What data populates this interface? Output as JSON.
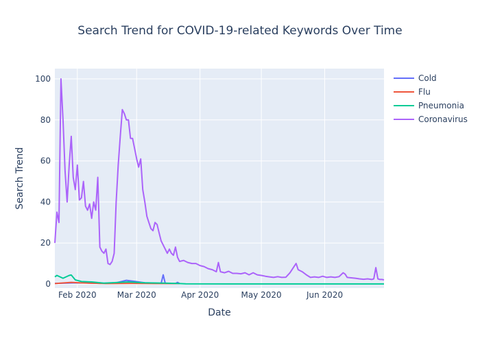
{
  "chart_data": {
    "type": "line",
    "title": "Search Trend for COVID-19-related Keywords Over Time",
    "xlabel": "Date",
    "ylabel": "Search Trend",
    "xlim": [
      "2020-01-21",
      "2020-06-30"
    ],
    "ylim": [
      -2,
      105
    ],
    "x_ticks": [
      {
        "date": "2020-02-01",
        "label": "Feb 2020"
      },
      {
        "date": "2020-03-01",
        "label": "Mar 2020"
      },
      {
        "date": "2020-04-01",
        "label": "Apr 2020"
      },
      {
        "date": "2020-05-01",
        "label": "May 2020"
      },
      {
        "date": "2020-06-01",
        "label": "Jun 2020"
      }
    ],
    "y_ticks": [
      0,
      20,
      40,
      60,
      80,
      100
    ],
    "grid": true,
    "legend_position": "top-right",
    "background_color": "#e5ecf6",
    "series": [
      {
        "name": "Cold",
        "color": "#636efa",
        "points": [
          [
            "2020-01-21",
            0.3
          ],
          [
            "2020-01-30",
            0.5
          ],
          [
            "2020-02-05",
            0.5
          ],
          [
            "2020-02-12",
            0.3
          ],
          [
            "2020-02-20",
            0.6
          ],
          [
            "2020-02-25",
            1.8
          ],
          [
            "2020-02-29",
            1.3
          ],
          [
            "2020-03-05",
            0.6
          ],
          [
            "2020-03-10",
            0.4
          ],
          [
            "2020-03-13",
            0.3
          ],
          [
            "2020-03-14",
            4.5
          ],
          [
            "2020-03-15",
            0.3
          ],
          [
            "2020-03-20",
            0.2
          ],
          [
            "2020-03-21",
            0.8
          ],
          [
            "2020-03-22",
            0.2
          ]
        ]
      },
      {
        "name": "Flu",
        "color": "#ef553b",
        "points": [
          [
            "2020-01-21",
            0.2
          ],
          [
            "2020-01-29",
            0.8
          ],
          [
            "2020-02-04",
            0.5
          ],
          [
            "2020-02-15",
            0.2
          ],
          [
            "2020-02-28",
            0.3
          ],
          [
            "2020-03-10",
            0.2
          ],
          [
            "2020-03-22",
            0.2
          ]
        ]
      },
      {
        "name": "Pneumonia",
        "color": "#00cc96",
        "points": [
          [
            "2020-01-21",
            3.5
          ],
          [
            "2020-01-22",
            4.2
          ],
          [
            "2020-01-25",
            2.8
          ],
          [
            "2020-01-28",
            4.2
          ],
          [
            "2020-01-29",
            4.4
          ],
          [
            "2020-01-31",
            2.0
          ],
          [
            "2020-02-03",
            1.2
          ],
          [
            "2020-02-08",
            1.0
          ],
          [
            "2020-02-14",
            0.4
          ],
          [
            "2020-02-20",
            0.7
          ],
          [
            "2020-02-26",
            1.0
          ],
          [
            "2020-03-05",
            0.6
          ],
          [
            "2020-03-15",
            0.4
          ],
          [
            "2020-03-20",
            0.3
          ],
          [
            "2020-03-25",
            0.1
          ],
          [
            "2020-04-15",
            0.05
          ],
          [
            "2020-06-30",
            0.05
          ]
        ]
      },
      {
        "name": "Coronavirus",
        "color": "#ab63fa",
        "points": [
          [
            "2020-01-21",
            20
          ],
          [
            "2020-01-22",
            35
          ],
          [
            "2020-01-23",
            30
          ],
          [
            "2020-01-24",
            100
          ],
          [
            "2020-01-25",
            80
          ],
          [
            "2020-01-26",
            55
          ],
          [
            "2020-01-27",
            40
          ],
          [
            "2020-01-28",
            58
          ],
          [
            "2020-01-29",
            72
          ],
          [
            "2020-01-30",
            52
          ],
          [
            "2020-01-31",
            46
          ],
          [
            "2020-02-01",
            58
          ],
          [
            "2020-02-02",
            41
          ],
          [
            "2020-02-03",
            42
          ],
          [
            "2020-02-04",
            50
          ],
          [
            "2020-02-05",
            38
          ],
          [
            "2020-02-06",
            36
          ],
          [
            "2020-02-07",
            39
          ],
          [
            "2020-02-08",
            32
          ],
          [
            "2020-02-09",
            40
          ],
          [
            "2020-02-10",
            36
          ],
          [
            "2020-02-11",
            52
          ],
          [
            "2020-02-12",
            18
          ],
          [
            "2020-02-13",
            16
          ],
          [
            "2020-02-14",
            15
          ],
          [
            "2020-02-15",
            17
          ],
          [
            "2020-02-16",
            10
          ],
          [
            "2020-02-17",
            9.5
          ],
          [
            "2020-02-18",
            11
          ],
          [
            "2020-02-19",
            15
          ],
          [
            "2020-02-20",
            40
          ],
          [
            "2020-02-21",
            58
          ],
          [
            "2020-02-22",
            72
          ],
          [
            "2020-02-23",
            85
          ],
          [
            "2020-02-24",
            83
          ],
          [
            "2020-02-25",
            80
          ],
          [
            "2020-02-26",
            80
          ],
          [
            "2020-02-27",
            71
          ],
          [
            "2020-02-28",
            71
          ],
          [
            "2020-02-29",
            66
          ],
          [
            "2020-03-01",
            61
          ],
          [
            "2020-03-02",
            57
          ],
          [
            "2020-03-03",
            61
          ],
          [
            "2020-03-04",
            46
          ],
          [
            "2020-03-05",
            40
          ],
          [
            "2020-03-06",
            33
          ],
          [
            "2020-03-07",
            30
          ],
          [
            "2020-03-08",
            27
          ],
          [
            "2020-03-09",
            26
          ],
          [
            "2020-03-10",
            30
          ],
          [
            "2020-03-11",
            29
          ],
          [
            "2020-03-12",
            25
          ],
          [
            "2020-03-13",
            21
          ],
          [
            "2020-03-14",
            19
          ],
          [
            "2020-03-15",
            17
          ],
          [
            "2020-03-16",
            15
          ],
          [
            "2020-03-17",
            17
          ],
          [
            "2020-03-18",
            15
          ],
          [
            "2020-03-19",
            14
          ],
          [
            "2020-03-20",
            18
          ],
          [
            "2020-03-21",
            13
          ],
          [
            "2020-03-22",
            11
          ],
          [
            "2020-03-24",
            11.5
          ],
          [
            "2020-03-26",
            10.5
          ],
          [
            "2020-03-28",
            10
          ],
          [
            "2020-03-30",
            10
          ],
          [
            "2020-04-01",
            9
          ],
          [
            "2020-04-03",
            8.5
          ],
          [
            "2020-04-05",
            7.5
          ],
          [
            "2020-04-07",
            7
          ],
          [
            "2020-04-09",
            6
          ],
          [
            "2020-04-10",
            10.5
          ],
          [
            "2020-04-11",
            6
          ],
          [
            "2020-04-13",
            5.5
          ],
          [
            "2020-04-15",
            6.2
          ],
          [
            "2020-04-17",
            5.2
          ],
          [
            "2020-04-19",
            5.2
          ],
          [
            "2020-04-21",
            5
          ],
          [
            "2020-04-23",
            5.5
          ],
          [
            "2020-04-25",
            4.5
          ],
          [
            "2020-04-27",
            5.5
          ],
          [
            "2020-04-29",
            4.5
          ],
          [
            "2020-05-01",
            4.2
          ],
          [
            "2020-05-03",
            3.8
          ],
          [
            "2020-05-05",
            3.5
          ],
          [
            "2020-05-07",
            3.2
          ],
          [
            "2020-05-09",
            3.6
          ],
          [
            "2020-05-11",
            3.2
          ],
          [
            "2020-05-13",
            3.3
          ],
          [
            "2020-05-15",
            5.5
          ],
          [
            "2020-05-17",
            8.5
          ],
          [
            "2020-05-18",
            10
          ],
          [
            "2020-05-19",
            7
          ],
          [
            "2020-05-21",
            6
          ],
          [
            "2020-05-23",
            4.5
          ],
          [
            "2020-05-25",
            3.2
          ],
          [
            "2020-05-27",
            3.5
          ],
          [
            "2020-05-29",
            3.2
          ],
          [
            "2020-05-31",
            3.8
          ],
          [
            "2020-06-02",
            3.2
          ],
          [
            "2020-06-04",
            3.5
          ],
          [
            "2020-06-06",
            3.2
          ],
          [
            "2020-06-08",
            3.6
          ],
          [
            "2020-06-10",
            5.5
          ],
          [
            "2020-06-11",
            4.8
          ],
          [
            "2020-06-12",
            3.2
          ],
          [
            "2020-06-14",
            3
          ],
          [
            "2020-06-16",
            2.8
          ],
          [
            "2020-06-18",
            2.5
          ],
          [
            "2020-06-20",
            2.3
          ],
          [
            "2020-06-22",
            2.5
          ],
          [
            "2020-06-24",
            2.2
          ],
          [
            "2020-06-25",
            2.5
          ],
          [
            "2020-06-26",
            8
          ],
          [
            "2020-06-27",
            2.5
          ],
          [
            "2020-06-28",
            2.2
          ],
          [
            "2020-06-29",
            2.2
          ],
          [
            "2020-06-30",
            2
          ]
        ]
      }
    ]
  }
}
